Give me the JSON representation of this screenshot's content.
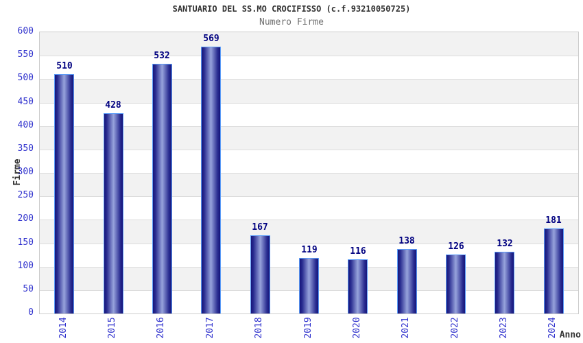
{
  "chart_data": {
    "type": "bar",
    "title": "SANTUARIO DEL SS.MO CROCIFISSO (c.f.93210050725)",
    "subtitle": "Numero Firme",
    "categories": [
      "2014",
      "2015",
      "2016",
      "2017",
      "2018",
      "2019",
      "2020",
      "2021",
      "2022",
      "2023",
      "2024"
    ],
    "values": [
      510,
      428,
      532,
      569,
      167,
      119,
      116,
      138,
      126,
      132,
      181
    ],
    "xlabel": "Anno",
    "ylabel": "Firme",
    "ylim": [
      0,
      600
    ],
    "ytick_step": 50,
    "grid": true,
    "legend": false,
    "alternating_bands": true,
    "colors": {
      "title_text": "#333333",
      "subtitle_text": "#707070",
      "axis_text": "#2f31cd",
      "axis_title_text": "#333333",
      "value_text": "#000080",
      "band_fill": "#f2f2f2",
      "grid_line": "#dcdcdc",
      "plot_border": "#cccccc",
      "bar_dark": "#15157a",
      "bar_mid": "#2a2d91",
      "bar_light": "#97a3dc",
      "bar_border": "#5b9cf8",
      "background": "#ffffff"
    }
  }
}
